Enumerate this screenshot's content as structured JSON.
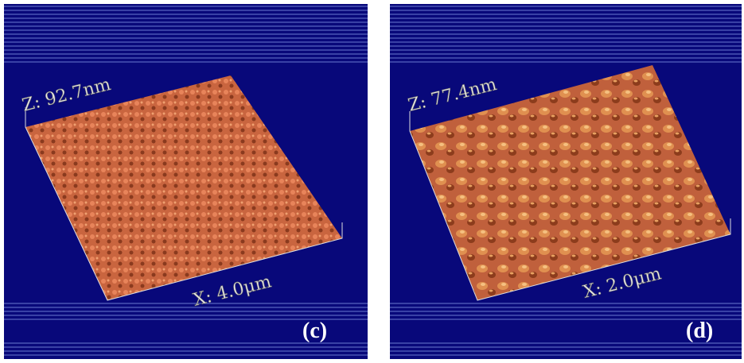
{
  "panels": [
    {
      "z_label": "Z: 92.7nm",
      "x_label": "X: 4.0μm",
      "label": "(c)"
    },
    {
      "z_label": "Z: 77.4nm",
      "x_label": "X: 2.0μm",
      "label": "(d)"
    }
  ]
}
